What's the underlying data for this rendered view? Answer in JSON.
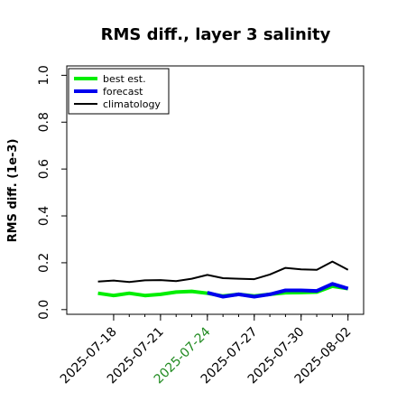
{
  "chart_data": {
    "type": "line",
    "title": "RMS diff., layer 3 salinity",
    "xlabel": "",
    "ylabel": "RMS diff. (1e-3)",
    "xlim": [
      "2025-07-15",
      "2025-08-03"
    ],
    "ylim": [
      -0.02,
      1.04
    ],
    "yticks": [
      0.0,
      0.2,
      0.4,
      0.6,
      0.8,
      1.0
    ],
    "ytick_labels": [
      "0.0",
      "0.2",
      "0.4",
      "0.6",
      "0.8",
      "1.0"
    ],
    "xticks": [
      "2025-07-18",
      "2025-07-21",
      "2025-07-24",
      "2025-07-27",
      "2025-07-30",
      "2025-08-02"
    ],
    "highlight_tick": "2025-07-24",
    "grid": false,
    "legend_position": "top-left",
    "series": [
      {
        "name": "best est.",
        "color": "#00ee00",
        "x": [
          "2025-07-17",
          "2025-07-18",
          "2025-07-19",
          "2025-07-20",
          "2025-07-21",
          "2025-07-22",
          "2025-07-23",
          "2025-07-24",
          "2025-07-25",
          "2025-07-26",
          "2025-07-27",
          "2025-07-28",
          "2025-07-29",
          "2025-07-30",
          "2025-07-31",
          "2025-08-01",
          "2025-08-02"
        ],
        "values": [
          0.07,
          0.06,
          0.07,
          0.06,
          0.065,
          0.075,
          0.078,
          0.07,
          0.058,
          0.065,
          0.058,
          0.065,
          0.072,
          0.073,
          0.075,
          0.1,
          0.09
        ]
      },
      {
        "name": "forecast",
        "color": "#0000ee",
        "x": [
          "2025-07-24",
          "2025-07-25",
          "2025-07-26",
          "2025-07-27",
          "2025-07-28",
          "2025-07-29",
          "2025-07-30",
          "2025-07-31",
          "2025-08-01",
          "2025-08-02"
        ],
        "values": [
          0.072,
          0.055,
          0.065,
          0.055,
          0.065,
          0.082,
          0.082,
          0.08,
          0.11,
          0.09
        ]
      },
      {
        "name": "climatology",
        "color": "#000000",
        "x": [
          "2025-07-17",
          "2025-07-18",
          "2025-07-19",
          "2025-07-20",
          "2025-07-21",
          "2025-07-22",
          "2025-07-23",
          "2025-07-24",
          "2025-07-25",
          "2025-07-26",
          "2025-07-27",
          "2025-07-28",
          "2025-07-29",
          "2025-07-30",
          "2025-07-31",
          "2025-08-01",
          "2025-08-02"
        ],
        "values": [
          0.12,
          0.124,
          0.118,
          0.125,
          0.126,
          0.122,
          0.132,
          0.148,
          0.134,
          0.132,
          0.13,
          0.15,
          0.178,
          0.172,
          0.17,
          0.205,
          0.17
        ]
      }
    ]
  }
}
